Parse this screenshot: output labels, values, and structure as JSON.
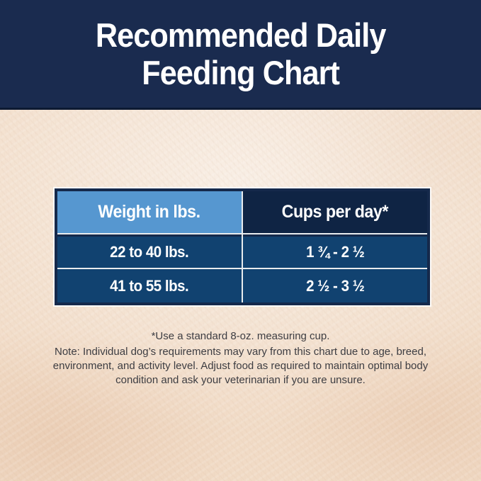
{
  "header": {
    "title": "Recommended Daily\nFeeding Chart"
  },
  "table": {
    "columns": [
      {
        "label": "Weight in lbs."
      },
      {
        "label": "Cups per day*"
      }
    ],
    "rows": [
      {
        "weight": "22 to 40 lbs.",
        "cups": "1 ¾ - 2 ½"
      },
      {
        "weight": "41 to 55 lbs.",
        "cups": "2 ½ - 3 ½"
      }
    ]
  },
  "footnotes": {
    "measuring_cup": "*Use a standard 8-oz. measuring cup.",
    "note": "Note: Individual dog’s requirements may vary from this chart due to age, breed, environment, and activity level. Adjust food as required to maintain optimal body condition and ask your veterinarian if you are unsure."
  },
  "colors": {
    "band_navy": "#1a2b4f",
    "table_border_navy": "#15294b",
    "header_light_blue": "#5697d0",
    "header_dark_navy": "#0f2444",
    "data_cell_blue": "#114270",
    "gridline_white": "#e9ecee",
    "background_beige": "#f1dbc6",
    "footnote_text": "#3d3d42",
    "title_text": "#ffffff"
  }
}
